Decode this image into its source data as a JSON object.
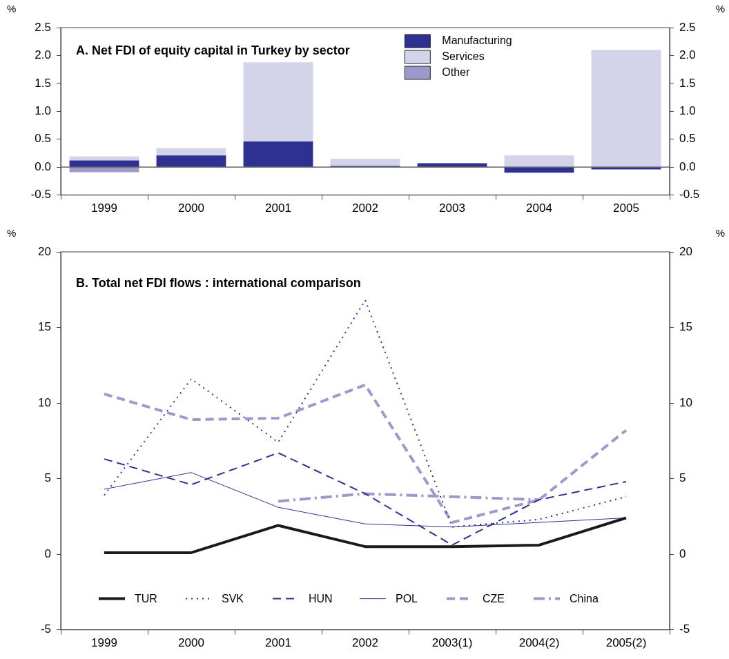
{
  "chart_data": [
    {
      "type": "bar",
      "title": "A. Net FDI of equity capital in Turkey by sector",
      "ylabel": "%",
      "y2label": "%",
      "stacked": true,
      "legend": "top right",
      "categories": [
        "1999",
        "2000",
        "2001",
        "2002",
        "2003",
        "2004",
        "2005"
      ],
      "series": [
        {
          "name": "Manufacturing",
          "color": "#2e3192",
          "values": [
            0.12,
            0.21,
            0.46,
            0.02,
            0.07,
            -0.1,
            -0.04
          ]
        },
        {
          "name": "Services",
          "color": "#d3d3ea",
          "values": [
            0.07,
            0.13,
            1.42,
            0.13,
            0,
            0.21,
            2.1
          ]
        },
        {
          "name": "Other",
          "color": "#9d99cc",
          "values": [
            -0.09,
            0,
            0,
            0,
            0,
            0,
            0
          ]
        }
      ],
      "ylim": [
        -0.5,
        2.5
      ],
      "yticks": [
        {
          "value": -0.5,
          "label": "-0.5"
        },
        {
          "value": 0,
          "label": "0.0"
        },
        {
          "value": 0.5,
          "label": "0.5"
        },
        {
          "value": 1,
          "label": "1.0"
        },
        {
          "value": 1.5,
          "label": "1.5"
        },
        {
          "value": 2,
          "label": "2.0"
        },
        {
          "value": 2.5,
          "label": "2.5"
        }
      ],
      "y2lim": [
        -0.5,
        2.5
      ],
      "y2ticks": [
        {
          "value": -0.5,
          "label": "-0.5"
        },
        {
          "value": 0,
          "label": "0.0"
        },
        {
          "value": 0.5,
          "label": "0.5"
        },
        {
          "value": 1,
          "label": "1.0"
        },
        {
          "value": 1.5,
          "label": "1.5"
        },
        {
          "value": 2,
          "label": "2.0"
        },
        {
          "value": 2.5,
          "label": "2.5"
        }
      ]
    },
    {
      "type": "line",
      "title": "B. Total net FDI flows : international comparison",
      "ylabel": "%",
      "y2label": "%",
      "legend": "bottom",
      "categories": [
        "1999",
        "2000",
        "2001",
        "2002",
        "2003(1)",
        "2004(2)",
        "2005(2)"
      ],
      "series": [
        {
          "name": "TUR",
          "color": "#1a1a1a",
          "line_style": "solid",
          "values": [
            0.1,
            0.1,
            1.9,
            0.5,
            0.5,
            0.6,
            2.4
          ]
        },
        {
          "name": "SVK",
          "color": "#2e3192",
          "line_style": "dotted",
          "values": [
            3.9,
            11.6,
            7.4,
            16.8,
            1.8,
            2.3,
            3.8
          ]
        },
        {
          "name": "HUN",
          "color": "#2e3192",
          "line_style": "dashed",
          "values": [
            6.3,
            4.6,
            6.7,
            4.0,
            0.6,
            3.6,
            4.8
          ]
        },
        {
          "name": "POL",
          "color": "#2e3192",
          "line_style": "solid",
          "values": [
            4.3,
            5.4,
            3.1,
            2.0,
            1.8,
            2.1,
            2.4
          ]
        },
        {
          "name": "CZE",
          "color": "#9d99cc",
          "line_style": "dashed",
          "values": [
            10.6,
            8.9,
            9.0,
            11.2,
            2.1,
            3.6,
            8.2
          ]
        },
        {
          "name": "China",
          "color": "#9d99cc",
          "line_style": "dashdot",
          "values": [
            null,
            null,
            3.5,
            4.0,
            3.8,
            3.6,
            null
          ]
        }
      ],
      "ylim": [
        -5,
        20
      ],
      "yticks": [
        -5,
        0,
        5,
        10,
        15,
        20
      ],
      "y2lim": [
        -5,
        20
      ],
      "y2ticks": [
        -5,
        0,
        5,
        10,
        15,
        20
      ]
    }
  ]
}
